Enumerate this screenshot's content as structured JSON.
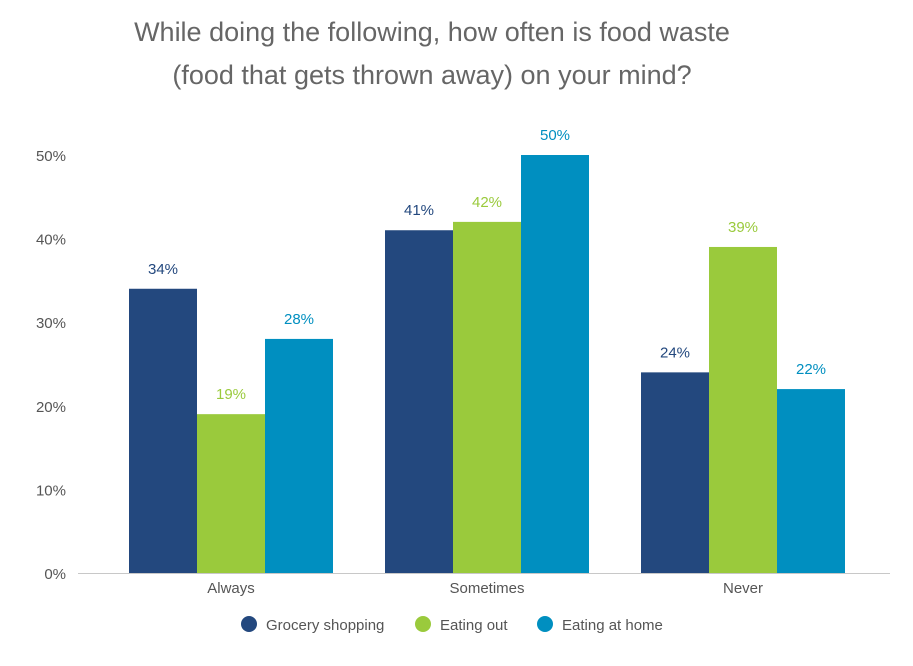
{
  "chart_data": {
    "type": "bar",
    "title": [
      "While doing the following, how often is food waste",
      "(food that gets thrown away) on your mind?"
    ],
    "categories": [
      "Always",
      "Sometimes",
      "Never"
    ],
    "series": [
      {
        "name": "Grocery shopping",
        "color": "#23487e",
        "values": [
          34,
          41,
          24
        ]
      },
      {
        "name": "Eating out",
        "color": "#9aca3c",
        "values": [
          19,
          42,
          39
        ]
      },
      {
        "name": "Eating at home",
        "color": "#008fc0",
        "values": [
          28,
          50,
          22
        ]
      }
    ],
    "yticks": [
      "0%",
      "10%",
      "20%",
      "30%",
      "40%",
      "50%"
    ],
    "ylim": [
      0,
      50
    ],
    "value_suffix": "%",
    "legend": "bottom",
    "grid": false
  }
}
